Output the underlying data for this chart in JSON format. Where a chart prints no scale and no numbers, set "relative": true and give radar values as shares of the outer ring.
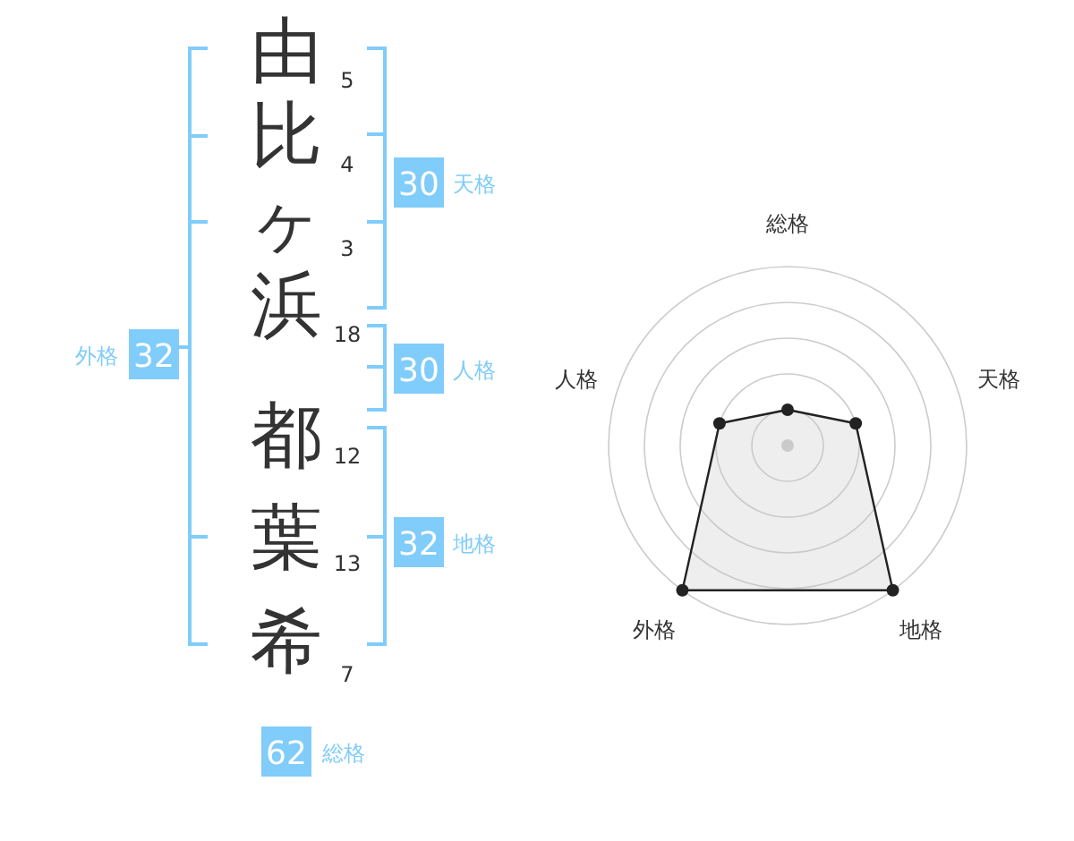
{
  "chart_data": [
    {
      "type": "other",
      "categories": [
        "由",
        "比",
        "ヶ",
        "浜",
        "都",
        "葉",
        "希"
      ],
      "values": [
        5,
        4,
        3,
        18,
        12,
        13,
        7
      ],
      "data_labels": true,
      "color": "#80ccfa",
      "annotations": [
        "30",
        "天格",
        "30",
        "人格",
        "32",
        "地格",
        "外格",
        "32",
        "62",
        "総格"
      ]
    },
    {
      "type": "radar",
      "categories": [
        "総格",
        "天格",
        "地格",
        "外格",
        "人格"
      ],
      "relative": true,
      "series": [
        {
          "color": "#222222",
          "values": [
            0.2,
            0.4,
            1,
            1,
            0.4
          ]
        }
      ]
    }
  ]
}
